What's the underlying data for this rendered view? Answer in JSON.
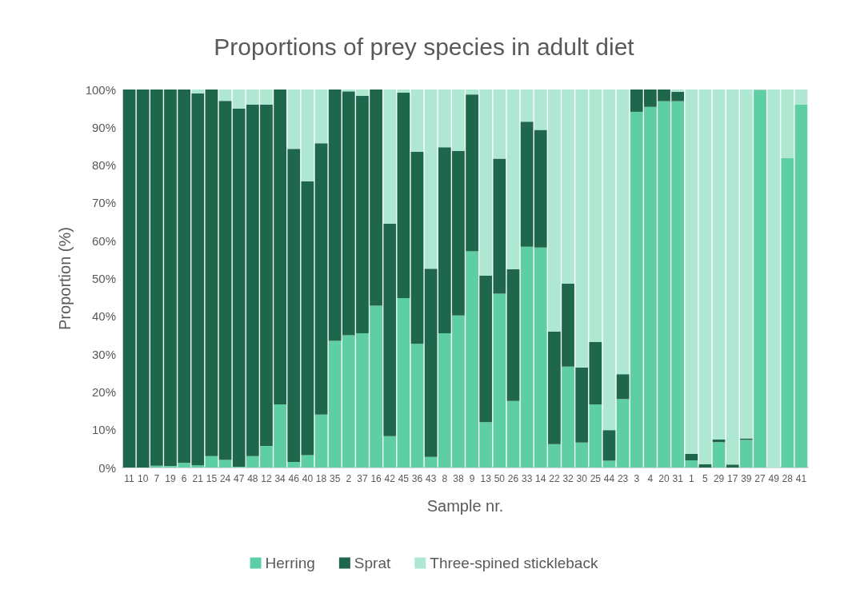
{
  "chart_data": {
    "type": "bar",
    "stacked": true,
    "title": "Proportions of prey species in adult diet",
    "xlabel": "Sample nr.",
    "ylabel": "Proportion (%)",
    "categories": [
      "11",
      "10",
      "7",
      "19",
      "6",
      "21",
      "15",
      "24",
      "47",
      "48",
      "12",
      "34",
      "46",
      "40",
      "18",
      "35",
      "2",
      "37",
      "16",
      "42",
      "45",
      "36",
      "43",
      "8",
      "38",
      "9",
      "13",
      "50",
      "26",
      "33",
      "14",
      "22",
      "32",
      "30",
      "25",
      "44",
      "23",
      "3",
      "4",
      "20",
      "31",
      "1",
      "5",
      "29",
      "17",
      "39",
      "27",
      "49",
      "28",
      "41"
    ],
    "series": [
      {
        "name": "Herring",
        "color": "#5ecfa4",
        "values": [
          0,
          0,
          0.5,
          0.4,
          1.2,
          0.6,
          3,
          2,
          0.2,
          3,
          5.7,
          16.7,
          1.5,
          3.3,
          14,
          33.5,
          35,
          35.5,
          42.8,
          8.3,
          44.8,
          32.7,
          2.8,
          35.5,
          40.2,
          57.2,
          12,
          46,
          17.6,
          58.4,
          58.2,
          6.2,
          26.7,
          6.6,
          16.7,
          1.8,
          18.1,
          94.1,
          95.4,
          96.9,
          96.9,
          1.9,
          0,
          6.7,
          0,
          7.3,
          99.8,
          0,
          81.8,
          96
        ]
      },
      {
        "name": "Sprat",
        "color": "#1e674c",
        "values": [
          100,
          100,
          99.5,
          99.6,
          98.8,
          98.4,
          97,
          95,
          94.8,
          93,
          90.3,
          83.3,
          82.8,
          72.4,
          71.8,
          66.5,
          64.5,
          62.8,
          57.2,
          56.2,
          54.4,
          50.8,
          49.8,
          49.2,
          43.6,
          41.5,
          38.8,
          35.7,
          34.9,
          33.1,
          31.1,
          29.8,
          22,
          19.9,
          16.5,
          8.1,
          6.6,
          5.9,
          4.6,
          3.1,
          2.5,
          1.7,
          0.9,
          0.7,
          0.8,
          0.4,
          0.1,
          0,
          0,
          0
        ]
      },
      {
        "name": "Three-spined stickleback",
        "color": "#aee8d3",
        "values": [
          0,
          0,
          0,
          0,
          0,
          1,
          0,
          3,
          5,
          4,
          4,
          0,
          15.7,
          24.3,
          14.2,
          0,
          0.5,
          1.7,
          0,
          35.5,
          0.8,
          16.5,
          47.4,
          15.3,
          16.2,
          1.3,
          49.2,
          18.3,
          47.5,
          8.5,
          10.7,
          64,
          51.3,
          73.5,
          66.8,
          90.1,
          75.3,
          0,
          0,
          0,
          0.6,
          96.4,
          99.1,
          92.6,
          99.2,
          92.3,
          0.1,
          100,
          18.2,
          4
        ]
      }
    ],
    "ylim": [
      0,
      100
    ],
    "yticks": [
      {
        "value": 0,
        "label": "0%"
      },
      {
        "value": 10,
        "label": "10%"
      },
      {
        "value": 20,
        "label": "20%"
      },
      {
        "value": 30,
        "label": "30%"
      },
      {
        "value": 40,
        "label": "40%"
      },
      {
        "value": 50,
        "label": "50%"
      },
      {
        "value": 60,
        "label": "60%"
      },
      {
        "value": 70,
        "label": "70%"
      },
      {
        "value": 80,
        "label": "80%"
      },
      {
        "value": 90,
        "label": "90%"
      },
      {
        "value": 100,
        "label": "100%"
      }
    ],
    "grid": false,
    "legend": "bottom"
  }
}
